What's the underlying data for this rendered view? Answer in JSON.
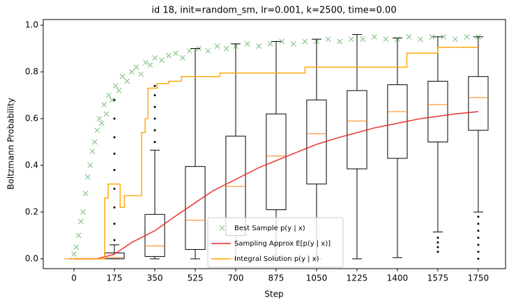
{
  "chart_data": {
    "type": "box",
    "title": "id 18, init=random_sm, lr=0.001, k=2500, time=0.00",
    "x_label": "Step",
    "y_label": "Boltzmann Probability",
    "xlim": [
      -133,
      1868
    ],
    "ylim": [
      -0.042,
      1.024
    ],
    "xticks": [
      0,
      175,
      350,
      525,
      700,
      875,
      1050,
      1225,
      1400,
      1575,
      1750
    ],
    "yticks": [
      {
        "value": 0,
        "label": "0.0"
      },
      0.2,
      0.4,
      0.6,
      0.8,
      {
        "value": 1,
        "label": "1.0"
      }
    ],
    "box_color": "#000000",
    "median_color": "#ff7f0e",
    "boxes": [
      {
        "position": 0,
        "whislo": 0,
        "q1": 0,
        "median": 0,
        "q3": 0,
        "whishi": 0,
        "fliers": []
      },
      {
        "position": 175,
        "whislo": 0,
        "q1": 0,
        "median": 0.005,
        "q3": 0.025,
        "whishi": 0.06,
        "fliers": [
          0.08,
          0.15,
          0.22,
          0.3,
          0.38,
          0.45,
          0.52,
          0.6,
          0.68
        ]
      },
      {
        "position": 350,
        "whislo": 0,
        "q1": 0.01,
        "median": 0.055,
        "q3": 0.19,
        "whishi": 0.465,
        "fliers": [
          0.5,
          0.55,
          0.6,
          0.65,
          0.7,
          0.74
        ]
      },
      {
        "position": 525,
        "whislo": 0,
        "q1": 0.04,
        "median": 0.165,
        "q3": 0.395,
        "whishi": 0.9,
        "fliers": []
      },
      {
        "position": 700,
        "whislo": 0,
        "q1": 0.1,
        "median": 0.31,
        "q3": 0.525,
        "whishi": 0.92,
        "fliers": []
      },
      {
        "position": 875,
        "whislo": 0,
        "q1": 0.21,
        "median": 0.44,
        "q3": 0.62,
        "whishi": 0.93,
        "fliers": []
      },
      {
        "position": 1050,
        "whislo": 0,
        "q1": 0.32,
        "median": 0.535,
        "q3": 0.68,
        "whishi": 0.94,
        "fliers": []
      },
      {
        "position": 1225,
        "whislo": 0,
        "q1": 0.385,
        "median": 0.59,
        "q3": 0.72,
        "whishi": 0.96,
        "fliers": []
      },
      {
        "position": 1400,
        "whislo": 0.005,
        "q1": 0.43,
        "median": 0.63,
        "q3": 0.745,
        "whishi": 0.945,
        "fliers": []
      },
      {
        "position": 1575,
        "whislo": 0.115,
        "q1": 0.5,
        "median": 0.66,
        "q3": 0.76,
        "whishi": 0.95,
        "fliers": [
          0.03,
          0.05,
          0.07,
          0.09
        ]
      },
      {
        "position": 1750,
        "whislo": 0.2,
        "q1": 0.55,
        "median": 0.69,
        "q3": 0.78,
        "whishi": 0.95,
        "fliers": [
          0,
          0.03,
          0.06,
          0.09,
          0.12,
          0.15,
          0.18
        ]
      }
    ],
    "series": [
      {
        "name": "Best Sample p(y | x)",
        "type": "scatter",
        "color": "#008000",
        "x": [
          0,
          10,
          20,
          30,
          40,
          50,
          60,
          70,
          80,
          90,
          100,
          110,
          120,
          130,
          140,
          150,
          165,
          180,
          195,
          210,
          230,
          250,
          270,
          290,
          310,
          330,
          350,
          380,
          410,
          440,
          470,
          500,
          540,
          580,
          620,
          660,
          700,
          750,
          800,
          850,
          900,
          950,
          1000,
          1050,
          1100,
          1150,
          1200,
          1250,
          1300,
          1350,
          1400,
          1450,
          1500,
          1550,
          1600,
          1650,
          1700,
          1750
        ],
        "values": [
          0.02,
          0.05,
          0.1,
          0.16,
          0.2,
          0.28,
          0.35,
          0.4,
          0.46,
          0.5,
          0.55,
          0.6,
          0.58,
          0.66,
          0.62,
          0.7,
          0.68,
          0.74,
          0.72,
          0.78,
          0.76,
          0.8,
          0.82,
          0.79,
          0.84,
          0.83,
          0.86,
          0.85,
          0.87,
          0.88,
          0.86,
          0.89,
          0.9,
          0.89,
          0.91,
          0.9,
          0.91,
          0.92,
          0.91,
          0.92,
          0.93,
          0.92,
          0.93,
          0.93,
          0.94,
          0.93,
          0.94,
          0.94,
          0.95,
          0.94,
          0.94,
          0.95,
          0.94,
          0.95,
          0.95,
          0.94,
          0.95,
          0.95
        ]
      },
      {
        "name": "Sampling Approx E[p(y | x)]",
        "type": "line",
        "color": "#e8292b",
        "x": [
          0,
          100,
          175,
          250,
          350,
          450,
          525,
          600,
          700,
          800,
          875,
          1000,
          1050,
          1150,
          1225,
          1300,
          1400,
          1500,
          1575,
          1650,
          1750
        ],
        "values": [
          0,
          0,
          0.02,
          0.07,
          0.12,
          0.19,
          0.24,
          0.29,
          0.34,
          0.39,
          0.42,
          0.47,
          0.49,
          0.52,
          0.54,
          0.56,
          0.58,
          0.6,
          0.61,
          0.62,
          0.63
        ]
      },
      {
        "name": "Integral Solution p(y | x)",
        "type": "step",
        "color": "#ffa500",
        "x": [
          -10,
          133,
          148,
          200,
          218,
          293,
          308,
          320,
          360,
          410,
          465,
          632,
          1000,
          1441,
          1575,
          1750
        ],
        "values": [
          0,
          0.26,
          0.32,
          0.22,
          0.27,
          0.54,
          0.6,
          0.73,
          0.75,
          0.76,
          0.78,
          0.795,
          0.82,
          0.88,
          0.905,
          0.905
        ]
      }
    ]
  }
}
